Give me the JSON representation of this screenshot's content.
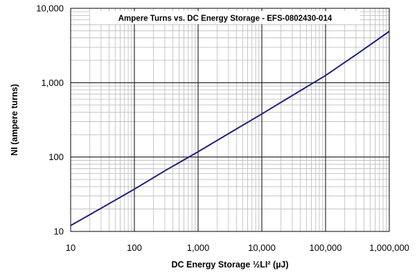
{
  "chart_data": {
    "type": "line",
    "title": "Ampere Turns vs. DC Energy Storage - EFS-0802430-014",
    "xlabel": "DC Energy Storage ½LI² (µJ)",
    "ylabel": "NI (ampere turns)",
    "x_scale": "log",
    "y_scale": "log",
    "xlim": [
      10,
      1000000
    ],
    "ylim": [
      10,
      10000
    ],
    "grid": true,
    "x_ticks": [
      {
        "value": 10,
        "label": "10"
      },
      {
        "value": 100,
        "label": "100"
      },
      {
        "value": 1000,
        "label": "1,000"
      },
      {
        "value": 10000,
        "label": "10,000"
      },
      {
        "value": 100000,
        "label": "100,000"
      },
      {
        "value": 1000000,
        "label": "1,000,000"
      }
    ],
    "y_ticks": [
      {
        "value": 10,
        "label": "10"
      },
      {
        "value": 100,
        "label": "100"
      },
      {
        "value": 1000,
        "label": "1,000"
      },
      {
        "value": 10000,
        "label": "10,000"
      }
    ],
    "series": [
      {
        "color": "#1f1f7a",
        "x": [
          10,
          31.6,
          100,
          316,
          1000,
          3162,
          10000,
          31623,
          100000,
          316228,
          1000000
        ],
        "y": [
          12,
          21,
          37,
          67,
          118,
          212,
          380,
          690,
          1250,
          2450,
          4900
        ]
      }
    ]
  }
}
